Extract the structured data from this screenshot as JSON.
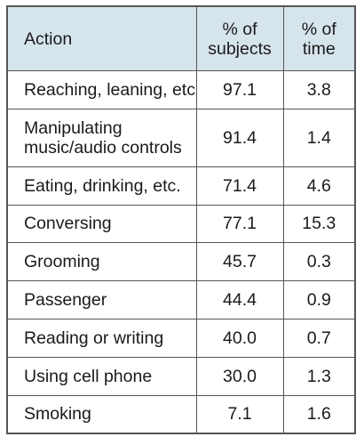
{
  "table": {
    "headers": {
      "action": "Action",
      "subjects": {
        "line1": "% of",
        "line2": "subjects"
      },
      "time": {
        "line1": "% of",
        "line2": "time"
      }
    },
    "rows": [
      {
        "action": [
          "Reaching, leaning, etc"
        ],
        "subjects": "97.1",
        "time": "3.8"
      },
      {
        "action": [
          "Manipulating",
          "music/audio controls"
        ],
        "subjects": "91.4",
        "time": "1.4"
      },
      {
        "action": [
          "Eating, drinking, etc."
        ],
        "subjects": "71.4",
        "time": "4.6"
      },
      {
        "action": [
          "Conversing"
        ],
        "subjects": "77.1",
        "time": "15.3"
      },
      {
        "action": [
          "Grooming"
        ],
        "subjects": "45.7",
        "time": "0.3"
      },
      {
        "action": [
          "Passenger"
        ],
        "subjects": "44.4",
        "time": "0.9"
      },
      {
        "action": [
          "Reading or writing"
        ],
        "subjects": "40.0",
        "time": "0.7"
      },
      {
        "action": [
          "Using cell phone"
        ],
        "subjects": "30.0",
        "time": "1.3"
      },
      {
        "action": [
          "Smoking"
        ],
        "subjects": "7.1",
        "time": "1.6"
      }
    ],
    "colors": {
      "header_background": "#d6e4ec",
      "border": "#555555",
      "text": "#1a1a1a"
    }
  }
}
